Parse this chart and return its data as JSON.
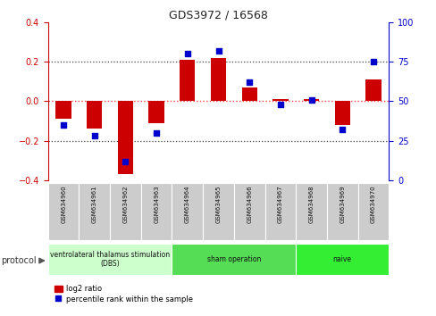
{
  "title": "GDS3972 / 16568",
  "samples": [
    "GSM634960",
    "GSM634961",
    "GSM634962",
    "GSM634963",
    "GSM634964",
    "GSM634965",
    "GSM634966",
    "GSM634967",
    "GSM634968",
    "GSM634969",
    "GSM634970"
  ],
  "log2_ratio": [
    -0.09,
    -0.14,
    -0.37,
    -0.11,
    0.21,
    0.22,
    0.07,
    0.01,
    0.01,
    -0.12,
    0.11
  ],
  "percentile_rank": [
    35,
    28,
    12,
    30,
    80,
    82,
    62,
    48,
    51,
    32,
    75
  ],
  "bar_color": "#cc0000",
  "dot_color": "#0000cc",
  "ylim_left": [
    -0.4,
    0.4
  ],
  "ylim_right": [
    0,
    100
  ],
  "yticks_left": [
    -0.4,
    -0.2,
    0.0,
    0.2,
    0.4
  ],
  "yticks_right": [
    0,
    25,
    50,
    75,
    100
  ],
  "groups": [
    {
      "label": "ventrolateral thalamus stimulation\n(DBS)",
      "start": 0,
      "end": 3,
      "color": "#ccffcc"
    },
    {
      "label": "sham operation",
      "start": 4,
      "end": 7,
      "color": "#55dd55"
    },
    {
      "label": "naive",
      "start": 8,
      "end": 10,
      "color": "#33ee33"
    }
  ],
  "protocol_label": "protocol",
  "legend_bar_label": "log2 ratio",
  "legend_dot_label": "percentile rank within the sample",
  "plot_bg": "#ffffff",
  "zero_line_color": "#ff4444",
  "dotted_line_color": "#444444",
  "tick_label_fontsize": 7,
  "bar_width": 0.5
}
